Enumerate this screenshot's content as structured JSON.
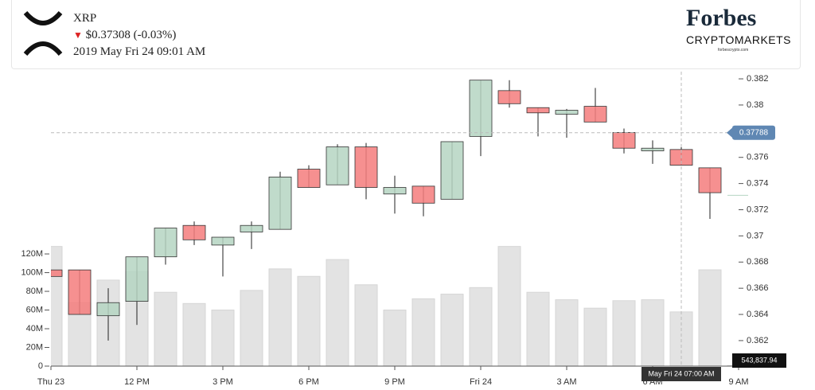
{
  "header": {
    "symbol": "XRP",
    "price_change": "$0.37308 (-0.03%)",
    "datetime": "2019 May Fri 24 09:01 AM"
  },
  "brand": {
    "name": "Forbes",
    "product": "CRYPTOMARKETS",
    "url": "forbescrypto.com"
  },
  "chart_data": {
    "type": "candlestick",
    "categories": [
      "Thu 23",
      null,
      null,
      "12 PM",
      null,
      null,
      "3 PM",
      null,
      null,
      "6 PM",
      null,
      null,
      "9 PM",
      null,
      null,
      "Fri 24",
      null,
      null,
      "3 AM",
      null,
      null,
      "6 AM",
      null,
      null,
      "9 AM"
    ],
    "open": [
      0.3674,
      0.3674,
      0.3639,
      0.365,
      0.3684,
      0.3708,
      0.3693,
      0.3703,
      0.3705,
      0.3751,
      0.3739,
      0.3768,
      0.3732,
      0.3738,
      0.3728,
      0.3776,
      0.3811,
      0.3798,
      0.3793,
      0.3799,
      0.3779,
      0.3765,
      0.3766,
      0.3752,
      0.3731
    ],
    "high": [
      0.3674,
      0.3674,
      0.366,
      0.3684,
      0.3706,
      0.3711,
      0.3699,
      0.3711,
      0.3749,
      0.3754,
      0.377,
      0.3771,
      0.3746,
      0.3738,
      0.3772,
      0.3819,
      0.3819,
      0.3798,
      0.3797,
      0.3813,
      0.3782,
      0.3773,
      0.3769,
      0.3752,
      0.3731
    ],
    "low": [
      0.3669,
      0.364,
      0.362,
      0.3632,
      0.3678,
      0.3693,
      0.3669,
      0.369,
      0.3705,
      0.3737,
      0.3739,
      0.3728,
      0.3717,
      0.3715,
      0.3728,
      0.3761,
      0.3798,
      0.3776,
      0.3775,
      0.3787,
      0.3763,
      0.3755,
      0.3754,
      0.3713,
      0.3731
    ],
    "close": [
      0.3669,
      0.364,
      0.3649,
      0.3684,
      0.3706,
      0.3697,
      0.3699,
      0.3708,
      0.3745,
      0.3737,
      0.3768,
      0.3737,
      0.3737,
      0.3725,
      0.3772,
      0.3819,
      0.3801,
      0.3794,
      0.3796,
      0.3787,
      0.3767,
      0.3767,
      0.3754,
      0.3733,
      0.3731
    ],
    "volume": [
      128000000,
      68000000,
      92000000,
      101000000,
      79000000,
      67000000,
      60000000,
      81000000,
      104000000,
      96000000,
      114000000,
      87000000,
      60000000,
      72000000,
      77000000,
      84000000,
      128000000,
      79000000,
      71000000,
      62000000,
      70000000,
      71000000,
      58000000,
      103000000,
      543837.94
    ],
    "volume_labels": [
      null,
      null,
      null,
      null,
      null,
      null,
      null,
      null,
      null,
      null,
      null,
      null,
      null,
      null,
      null,
      null,
      null,
      null,
      null,
      null,
      null,
      null,
      null,
      null,
      "543,837.94"
    ],
    "up_color": "#b5d5c2",
    "down_color": "#f57c7c",
    "volume_color": "#e3e3e3",
    "ylim": [
      0.36005,
      0.38255
    ],
    "yticks": [
      0.362,
      0.364,
      0.366,
      0.368,
      0.37,
      0.372,
      0.374,
      0.376,
      0.378,
      0.38,
      0.382
    ],
    "y2lim": [
      0,
      315000000
    ],
    "y2ticks": [
      0,
      {
        "value": 20000000,
        "label": "20M"
      },
      {
        "value": 40000000,
        "label": "40M"
      },
      {
        "value": 60000000,
        "label": "60M"
      },
      {
        "value": 80000000,
        "label": "80M"
      },
      {
        "value": 100000000,
        "label": "100M"
      },
      {
        "value": 120000000,
        "label": "120M"
      }
    ],
    "crosshair": {
      "value": 0.37788,
      "x": 22,
      "label": "May Fri 24 07:00 AM"
    }
  }
}
